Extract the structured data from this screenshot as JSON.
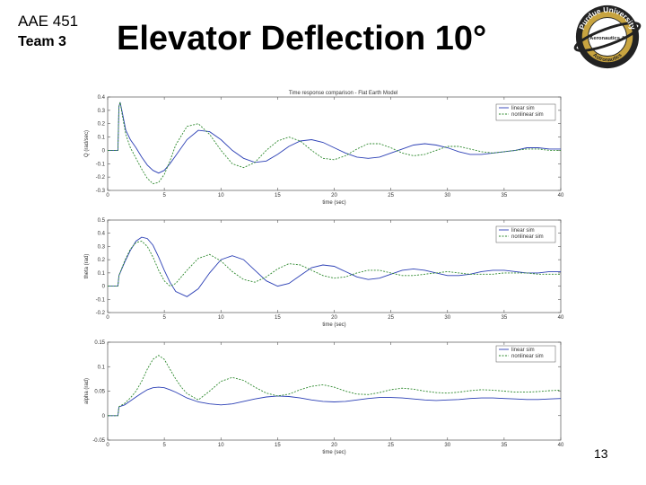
{
  "header": {
    "course": "AAE 451",
    "team": "Team 3",
    "title": "Elevator Deflection 10°"
  },
  "logo": {
    "top_text": "Purdue University",
    "middle_text": "Aeronautics &",
    "bottom_text": "Astronautics"
  },
  "footer": {
    "page_number": "13"
  },
  "colors": {
    "linear": "#2b3fb5",
    "nonlinear": "#2f8a2f"
  },
  "chart_data": [
    {
      "type": "line",
      "title": "Time response comparison - Flat Earth Model",
      "xlabel": "time (sec)",
      "ylabel": "Q (rad/sec)",
      "xlim": [
        0,
        40
      ],
      "ylim": [
        -0.3,
        0.4
      ],
      "xticks": [
        0,
        5,
        10,
        15,
        20,
        25,
        30,
        35,
        40
      ],
      "yticks": [
        -0.3,
        -0.2,
        -0.1,
        0,
        0.1,
        0.2,
        0.3,
        0.4
      ],
      "legend": [
        "linear sim",
        "nonlinear sim"
      ],
      "series": [
        {
          "name": "linear sim",
          "x": [
            0,
            0.9,
            1,
            1.1,
            1.3,
            1.6,
            2,
            2.5,
            3,
            3.5,
            4,
            4.5,
            5,
            5.5,
            6,
            7,
            8,
            9,
            10,
            11,
            12,
            13,
            14,
            15,
            16,
            17,
            18,
            19,
            20,
            21,
            22,
            23,
            24,
            25,
            26,
            27,
            28,
            29,
            30,
            31,
            32,
            33,
            34,
            35,
            36,
            37,
            38,
            39,
            40
          ],
          "y": [
            0,
            0,
            0.33,
            0.36,
            0.28,
            0.15,
            0.08,
            0.02,
            -0.05,
            -0.11,
            -0.15,
            -0.17,
            -0.15,
            -0.1,
            -0.04,
            0.08,
            0.15,
            0.14,
            0.08,
            0,
            -0.06,
            -0.09,
            -0.08,
            -0.03,
            0.03,
            0.07,
            0.08,
            0.06,
            0.02,
            -0.02,
            -0.05,
            -0.06,
            -0.05,
            -0.02,
            0.01,
            0.04,
            0.05,
            0.04,
            0.02,
            -0.01,
            -0.03,
            -0.03,
            -0.02,
            -0.01,
            0,
            0.02,
            0.02,
            0.01,
            0.01
          ]
        },
        {
          "name": "nonlinear sim",
          "x": [
            0,
            0.9,
            1,
            1.1,
            1.3,
            1.6,
            2,
            2.5,
            3,
            3.5,
            4,
            4.5,
            5,
            5.5,
            6,
            7,
            8,
            9,
            10,
            11,
            12,
            13,
            14,
            15,
            16,
            17,
            18,
            19,
            20,
            21,
            22,
            23,
            24,
            25,
            26,
            27,
            28,
            29,
            30,
            31,
            32,
            33,
            34,
            35,
            36,
            37,
            38,
            39,
            40
          ],
          "y": [
            0,
            0,
            0.33,
            0.36,
            0.26,
            0.12,
            0.02,
            -0.06,
            -0.14,
            -0.21,
            -0.25,
            -0.24,
            -0.18,
            -0.08,
            0.04,
            0.18,
            0.2,
            0.12,
            0.0,
            -0.1,
            -0.13,
            -0.09,
            0.0,
            0.07,
            0.1,
            0.07,
            0.0,
            -0.06,
            -0.07,
            -0.04,
            0.01,
            0.05,
            0.05,
            0.02,
            -0.02,
            -0.04,
            -0.03,
            0.0,
            0.03,
            0.03,
            0.01,
            -0.01,
            -0.02,
            -0.01,
            0.0,
            0.01,
            0.01,
            0.0,
            0.0
          ]
        }
      ]
    },
    {
      "type": "line",
      "title": "",
      "xlabel": "time (sec)",
      "ylabel": "theta (rad)",
      "xlim": [
        0,
        40
      ],
      "ylim": [
        -0.2,
        0.5
      ],
      "xticks": [
        0,
        5,
        10,
        15,
        20,
        25,
        30,
        35,
        40
      ],
      "yticks": [
        -0.2,
        -0.1,
        0,
        0.1,
        0.2,
        0.3,
        0.4,
        0.5
      ],
      "legend": [
        "linear sim",
        "nonlinear sim"
      ],
      "series": [
        {
          "name": "linear sim",
          "x": [
            0,
            0.9,
            1,
            1.5,
            2,
            2.5,
            3,
            3.5,
            4,
            4.5,
            5,
            5.5,
            6,
            7,
            8,
            9,
            10,
            11,
            12,
            13,
            14,
            15,
            16,
            17,
            18,
            19,
            20,
            21,
            22,
            23,
            24,
            25,
            26,
            27,
            28,
            29,
            30,
            31,
            32,
            33,
            34,
            35,
            36,
            37,
            38,
            39,
            40
          ],
          "y": [
            0,
            0,
            0.08,
            0.18,
            0.27,
            0.34,
            0.37,
            0.36,
            0.31,
            0.22,
            0.12,
            0.03,
            -0.04,
            -0.08,
            -0.02,
            0.1,
            0.2,
            0.23,
            0.2,
            0.12,
            0.04,
            0.0,
            0.02,
            0.08,
            0.14,
            0.16,
            0.15,
            0.11,
            0.07,
            0.05,
            0.06,
            0.09,
            0.12,
            0.13,
            0.12,
            0.1,
            0.08,
            0.08,
            0.09,
            0.11,
            0.12,
            0.12,
            0.11,
            0.1,
            0.1,
            0.11,
            0.11
          ]
        },
        {
          "name": "nonlinear sim",
          "x": [
            0,
            0.9,
            1,
            1.5,
            2,
            2.5,
            3,
            3.5,
            4,
            4.5,
            5,
            5.5,
            6,
            7,
            8,
            9,
            10,
            11,
            12,
            13,
            14,
            15,
            16,
            17,
            18,
            19,
            20,
            21,
            22,
            23,
            24,
            25,
            26,
            27,
            28,
            29,
            30,
            31,
            32,
            33,
            34,
            35,
            36,
            37,
            38,
            39,
            40
          ],
          "y": [
            0,
            0,
            0.08,
            0.19,
            0.28,
            0.33,
            0.34,
            0.3,
            0.22,
            0.12,
            0.04,
            0.0,
            0.02,
            0.12,
            0.21,
            0.24,
            0.19,
            0.11,
            0.05,
            0.03,
            0.07,
            0.13,
            0.17,
            0.16,
            0.12,
            0.08,
            0.06,
            0.07,
            0.1,
            0.12,
            0.12,
            0.1,
            0.08,
            0.08,
            0.09,
            0.1,
            0.11,
            0.1,
            0.09,
            0.09,
            0.09,
            0.1,
            0.1,
            0.1,
            0.09,
            0.09,
            0.09
          ]
        }
      ]
    },
    {
      "type": "line",
      "title": "",
      "xlabel": "time (sec)",
      "ylabel": "alpha (rad)",
      "xlim": [
        0,
        40
      ],
      "ylim": [
        -0.05,
        0.15
      ],
      "xticks": [
        0,
        5,
        10,
        15,
        20,
        25,
        30,
        35,
        40
      ],
      "yticks": [
        -0.05,
        0,
        0.05,
        0.1,
        0.15
      ],
      "legend": [
        "linear sim",
        "nonlinear sim"
      ],
      "series": [
        {
          "name": "linear sim",
          "x": [
            0,
            0.9,
            1,
            1.5,
            2,
            2.5,
            3,
            3.5,
            4,
            4.5,
            5,
            5.5,
            6,
            6.5,
            7,
            8,
            9,
            10,
            11,
            12,
            13,
            14,
            15,
            16,
            17,
            18,
            19,
            20,
            21,
            22,
            23,
            24,
            25,
            26,
            27,
            28,
            29,
            30,
            31,
            32,
            33,
            34,
            35,
            36,
            37,
            38,
            39,
            40
          ],
          "y": [
            0,
            0,
            0.018,
            0.022,
            0.03,
            0.038,
            0.046,
            0.053,
            0.057,
            0.058,
            0.057,
            0.053,
            0.048,
            0.042,
            0.036,
            0.028,
            0.024,
            0.022,
            0.024,
            0.029,
            0.034,
            0.038,
            0.04,
            0.039,
            0.036,
            0.032,
            0.029,
            0.028,
            0.029,
            0.032,
            0.035,
            0.037,
            0.037,
            0.036,
            0.034,
            0.032,
            0.031,
            0.032,
            0.033,
            0.035,
            0.036,
            0.036,
            0.035,
            0.034,
            0.033,
            0.033,
            0.034,
            0.035
          ]
        },
        {
          "name": "nonlinear sim",
          "x": [
            0,
            0.9,
            1,
            1.5,
            2,
            2.5,
            3,
            3.5,
            4,
            4.5,
            5,
            5.5,
            6,
            6.5,
            7,
            8,
            9,
            10,
            11,
            12,
            13,
            14,
            15,
            16,
            17,
            18,
            19,
            20,
            21,
            22,
            23,
            24,
            25,
            26,
            27,
            28,
            29,
            30,
            31,
            32,
            33,
            34,
            35,
            36,
            37,
            38,
            39,
            40
          ],
          "y": [
            0,
            0,
            0.018,
            0.025,
            0.036,
            0.05,
            0.07,
            0.095,
            0.115,
            0.123,
            0.115,
            0.095,
            0.075,
            0.058,
            0.045,
            0.032,
            0.05,
            0.07,
            0.078,
            0.072,
            0.058,
            0.046,
            0.04,
            0.044,
            0.053,
            0.06,
            0.063,
            0.058,
            0.05,
            0.044,
            0.043,
            0.047,
            0.053,
            0.056,
            0.054,
            0.05,
            0.047,
            0.046,
            0.048,
            0.051,
            0.053,
            0.052,
            0.05,
            0.048,
            0.048,
            0.049,
            0.051,
            0.052
          ]
        }
      ]
    }
  ]
}
